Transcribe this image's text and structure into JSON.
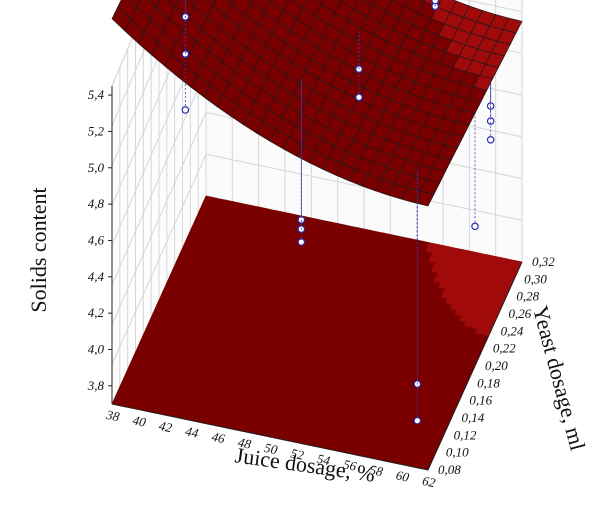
{
  "chart_data": {
    "type": "surface3d",
    "title": "",
    "xlabel": "Juice dosage, %",
    "ylabel": "Yeast dosage, ml",
    "zlabel": "Solids content",
    "x_ticks": [
      "38",
      "40",
      "42",
      "44",
      "46",
      "48",
      "50",
      "52",
      "54",
      "56",
      "58",
      "60",
      "62"
    ],
    "y_ticks": [
      "0,08",
      "0,10",
      "0,12",
      "0,14",
      "0,16",
      "0,18",
      "0,20",
      "0,22",
      "0,24",
      "0,26",
      "0,28",
      "0,30",
      "0,32"
    ],
    "z_ticks": [
      "3,8",
      "4,0",
      "4,2",
      "4,4",
      "4,6",
      "4,8",
      "5,0",
      "5,2",
      "5,4"
    ],
    "xlim": [
      38,
      62
    ],
    "ylim": [
      0.08,
      0.32
    ],
    "zlim": [
      3.7,
      5.45
    ],
    "grid": true,
    "colormap": [
      "#7a0000",
      "#a10a0a",
      "#c81a0a",
      "#e0400a",
      "#f07a10",
      "#f7b10c",
      "#f5e51a",
      "#cce52a",
      "#8fd630",
      "#4fbb2c",
      "#239a2a",
      "#0f7a24"
    ],
    "surface_model": "z = 5.82 - 0.0542*(x-38) + 0.0011*(x-38)^2 - 0.8*(y-0.08)",
    "observations": [
      {
        "x": 40,
        "y": 0.2,
        "z": 5.25
      },
      {
        "x": 40,
        "y": 0.2,
        "z": 5.05
      },
      {
        "x": 40,
        "y": 0.2,
        "z": 4.75
      },
      {
        "x": 42,
        "y": 0.26,
        "z": 5.45
      },
      {
        "x": 44,
        "y": 0.32,
        "z": 5.55
      },
      {
        "x": 50,
        "y": 0.16,
        "z": 4.45
      },
      {
        "x": 50,
        "y": 0.16,
        "z": 4.5
      },
      {
        "x": 50,
        "y": 0.16,
        "z": 4.38
      },
      {
        "x": 52,
        "y": 0.24,
        "z": 4.95
      },
      {
        "x": 52,
        "y": 0.24,
        "z": 4.8
      },
      {
        "x": 56,
        "y": 0.3,
        "z": 5.05
      },
      {
        "x": 56,
        "y": 0.3,
        "z": 5.08
      },
      {
        "x": 60,
        "y": 0.12,
        "z": 3.95
      },
      {
        "x": 60,
        "y": 0.12,
        "z": 3.75
      },
      {
        "x": 62,
        "y": 0.2,
        "z": 4.45
      },
      {
        "x": 62,
        "y": 0.24,
        "z": 4.9
      },
      {
        "x": 62,
        "y": 0.24,
        "z": 4.82
      },
      {
        "x": 62,
        "y": 0.24,
        "z": 4.72
      }
    ]
  }
}
